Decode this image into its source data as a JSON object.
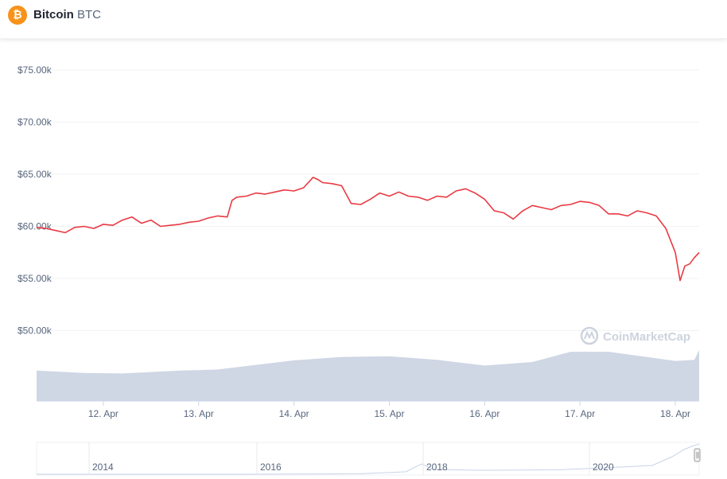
{
  "header": {
    "coin_icon": "bitcoin-icon",
    "coin_icon_glyph": "₿",
    "name": "Bitcoin",
    "symbol": "BTC"
  },
  "watermark": "CoinMarketCap",
  "colors": {
    "price_line": "#ea3943",
    "volume_fill": "#cfd6e4",
    "grid": "#eff2f5",
    "axis_text": "#58667e",
    "brand_orange": "#f7931a"
  },
  "chart_data": [
    {
      "type": "line",
      "title": "",
      "xlabel": "",
      "ylabel": "",
      "x_tick_labels": [
        "12. Apr",
        "13. Apr",
        "14. Apr",
        "15. Apr",
        "16. Apr",
        "17. Apr",
        "18. Apr"
      ],
      "y_tick_labels": [
        "$75.00k",
        "$70.00k",
        "$65.00k",
        "$60.00k",
        "$55.00k",
        "$50.00k"
      ],
      "ylim": [
        50000,
        75000
      ],
      "grid": true,
      "series": [
        {
          "name": "",
          "x_days": [
            11.3,
            11.4,
            11.5,
            11.6,
            11.7,
            11.8,
            11.9,
            12.0,
            12.1,
            12.2,
            12.3,
            12.4,
            12.5,
            12.6,
            12.7,
            12.8,
            12.9,
            13.0,
            13.1,
            13.2,
            13.3,
            13.35,
            13.4,
            13.5,
            13.6,
            13.7,
            13.8,
            13.9,
            14.0,
            14.1,
            14.2,
            14.25,
            14.3,
            14.4,
            14.5,
            14.6,
            14.7,
            14.8,
            14.9,
            15.0,
            15.1,
            15.2,
            15.3,
            15.4,
            15.5,
            15.6,
            15.7,
            15.8,
            15.9,
            16.0,
            16.1,
            16.2,
            16.25,
            16.3,
            16.4,
            16.5,
            16.6,
            16.7,
            16.8,
            16.9,
            17.0,
            17.1,
            17.2,
            17.3,
            17.4,
            17.5,
            17.6,
            17.7,
            17.8,
            17.9,
            18.0,
            18.05,
            18.1,
            18.15,
            18.2,
            18.25
          ],
          "values": [
            59900,
            59800,
            59600,
            59400,
            59900,
            60000,
            59800,
            60200,
            60100,
            60600,
            60900,
            60300,
            60600,
            60000,
            60100,
            60200,
            60400,
            60500,
            60800,
            61000,
            60900,
            62500,
            62800,
            62900,
            63200,
            63100,
            63300,
            63500,
            63400,
            63700,
            64700,
            64500,
            64200,
            64100,
            63900,
            62200,
            62100,
            62600,
            63200,
            62900,
            63300,
            62900,
            62800,
            62500,
            62900,
            62800,
            63400,
            63600,
            63200,
            62600,
            61500,
            61300,
            61000,
            60700,
            61500,
            62000,
            61800,
            61600,
            62000,
            62100,
            62400,
            62300,
            62000,
            61200,
            61200,
            61000,
            61500,
            61300,
            61000,
            59800,
            57500,
            54800,
            56200,
            56400,
            57000,
            57500
          ]
        }
      ]
    },
    {
      "type": "area",
      "title": "",
      "series": [
        {
          "name": "",
          "x_days": [
            11.3,
            11.8,
            12.2,
            12.8,
            13.2,
            13.6,
            14.0,
            14.5,
            15.0,
            15.5,
            16.0,
            16.5,
            16.9,
            17.3,
            17.7,
            18.0,
            18.2,
            18.25
          ],
          "relative_values": [
            0.53,
            0.49,
            0.48,
            0.53,
            0.55,
            0.63,
            0.71,
            0.77,
            0.78,
            0.72,
            0.62,
            0.68,
            0.86,
            0.86,
            0.77,
            0.7,
            0.72,
            0.89
          ]
        }
      ]
    },
    {
      "type": "area",
      "title": "",
      "x_tick_labels": [
        "2014",
        "2016",
        "2018",
        "2020"
      ]
    }
  ]
}
